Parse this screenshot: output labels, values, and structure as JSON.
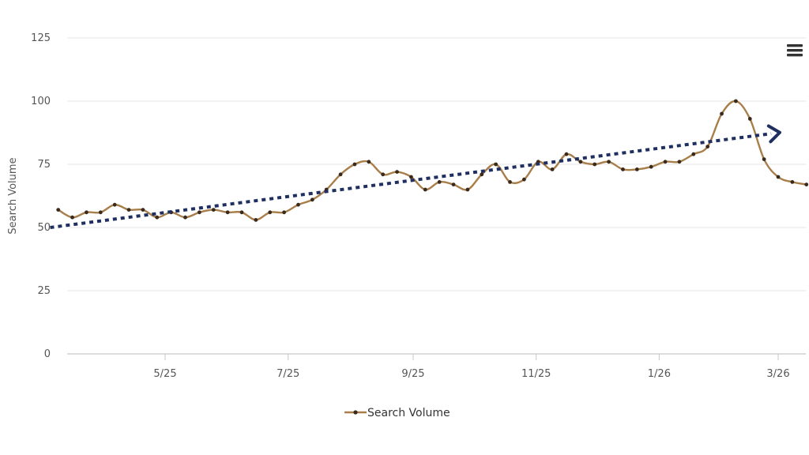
{
  "chart_data": {
    "type": "line",
    "title": "",
    "xlabel": "",
    "ylabel": "Search Volume",
    "ylim": [
      0,
      125
    ],
    "yticks": [
      0,
      25,
      50,
      75,
      100,
      125
    ],
    "xtick_labels": [
      "5/25",
      "7/25",
      "9/25",
      "11/25",
      "1/26",
      "3/26"
    ],
    "xtick_dates": [
      "2025-05-01",
      "2025-07-01",
      "2025-09-01",
      "2025-11-01",
      "2026-01-01",
      "2026-03-01"
    ],
    "grid": "horizontal",
    "legend_position": "bottom-center",
    "series": [
      {
        "name": "Search Volume",
        "color": "#a87e4a",
        "marker_color": "#3a2a1c",
        "dates": [
          "2025-03-09",
          "2025-03-16",
          "2025-03-23",
          "2025-03-30",
          "2025-04-06",
          "2025-04-13",
          "2025-04-20",
          "2025-04-27",
          "2025-05-04",
          "2025-05-11",
          "2025-05-18",
          "2025-05-25",
          "2025-06-01",
          "2025-06-08",
          "2025-06-15",
          "2025-06-22",
          "2025-06-29",
          "2025-07-06",
          "2025-07-13",
          "2025-07-20",
          "2025-07-27",
          "2025-08-03",
          "2025-08-10",
          "2025-08-17",
          "2025-08-24",
          "2025-08-31",
          "2025-09-07",
          "2025-09-14",
          "2025-09-21",
          "2025-09-28",
          "2025-10-05",
          "2025-10-12",
          "2025-10-19",
          "2025-10-26",
          "2025-11-02",
          "2025-11-09",
          "2025-11-16",
          "2025-11-23",
          "2025-11-30",
          "2025-12-07",
          "2025-12-14",
          "2025-12-21",
          "2025-12-28",
          "2026-01-04",
          "2026-01-11",
          "2026-01-18",
          "2026-01-25",
          "2026-02-01",
          "2026-02-08",
          "2026-02-15",
          "2026-02-22",
          "2026-03-01",
          "2026-03-08",
          "2026-03-15"
        ],
        "values": [
          57,
          54,
          56,
          56,
          59,
          57,
          57,
          54,
          56,
          54,
          56,
          57,
          56,
          56,
          53,
          56,
          56,
          59,
          61,
          65,
          71,
          75,
          76,
          71,
          72,
          70,
          65,
          68,
          67,
          65,
          71,
          75,
          68,
          69,
          76,
          73,
          79,
          76,
          75,
          76,
          73,
          73,
          74,
          76,
          76,
          79,
          82,
          95,
          100,
          93,
          77,
          70,
          68,
          67
        ]
      }
    ],
    "annotations": [
      {
        "type": "trend-arrow",
        "color": "#1f3060",
        "style": "dotted",
        "from": {
          "date": "2025-03-05",
          "value": 50
        },
        "to": {
          "date": "2026-03-01",
          "value": 87.5
        }
      }
    ]
  },
  "toolbar": {
    "menu_icon": "hamburger-menu-icon"
  }
}
